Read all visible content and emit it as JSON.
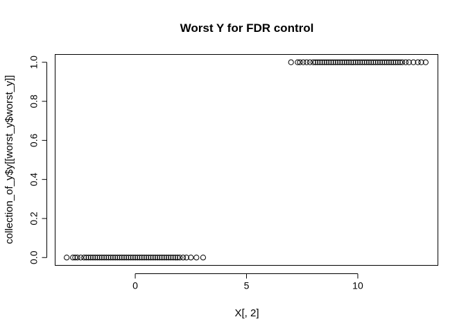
{
  "chart_data": {
    "type": "scatter",
    "title": "Worst Y for FDR control",
    "xlabel": "X[, 2]",
    "ylabel": "collection_of_y$y[[worst_y$worst_y]]",
    "xlim": [
      -3.6,
      13.6
    ],
    "ylim": [
      -0.04,
      1.04
    ],
    "x_ticks": [
      0,
      5,
      10
    ],
    "y_ticks": [
      0.0,
      0.2,
      0.4,
      0.6,
      0.8,
      1.0
    ],
    "x_tick_labels": [
      "0",
      "5",
      "10"
    ],
    "y_tick_labels": [
      "0.0",
      "0.2",
      "0.4",
      "0.6",
      "0.8",
      "1.0"
    ],
    "grid": false,
    "series": [
      {
        "values": [
          {
            "x": -3.08,
            "y": 0
          },
          {
            "x": -2.8,
            "y": 0
          },
          {
            "x": -2.7,
            "y": 0
          },
          {
            "x": -2.6,
            "y": 0
          },
          {
            "x": -2.45,
            "y": 0
          },
          {
            "x": -2.3,
            "y": 0
          },
          {
            "x": -2.2,
            "y": 0
          },
          {
            "x": -2.1,
            "y": 0
          },
          {
            "x": -2.0,
            "y": 0
          },
          {
            "x": -1.9,
            "y": 0
          },
          {
            "x": -1.8,
            "y": 0
          },
          {
            "x": -1.7,
            "y": 0
          },
          {
            "x": -1.6,
            "y": 0
          },
          {
            "x": -1.5,
            "y": 0
          },
          {
            "x": -1.4,
            "y": 0
          },
          {
            "x": -1.3,
            "y": 0
          },
          {
            "x": -1.2,
            "y": 0
          },
          {
            "x": -1.1,
            "y": 0
          },
          {
            "x": -1.0,
            "y": 0
          },
          {
            "x": -0.9,
            "y": 0
          },
          {
            "x": -0.8,
            "y": 0
          },
          {
            "x": -0.7,
            "y": 0
          },
          {
            "x": -0.6,
            "y": 0
          },
          {
            "x": -0.5,
            "y": 0
          },
          {
            "x": -0.4,
            "y": 0
          },
          {
            "x": -0.3,
            "y": 0
          },
          {
            "x": -0.2,
            "y": 0
          },
          {
            "x": -0.1,
            "y": 0
          },
          {
            "x": 0.0,
            "y": 0
          },
          {
            "x": 0.1,
            "y": 0
          },
          {
            "x": 0.2,
            "y": 0
          },
          {
            "x": 0.3,
            "y": 0
          },
          {
            "x": 0.4,
            "y": 0
          },
          {
            "x": 0.5,
            "y": 0
          },
          {
            "x": 0.6,
            "y": 0
          },
          {
            "x": 0.7,
            "y": 0
          },
          {
            "x": 0.8,
            "y": 0
          },
          {
            "x": 0.9,
            "y": 0
          },
          {
            "x": 1.0,
            "y": 0
          },
          {
            "x": 1.1,
            "y": 0
          },
          {
            "x": 1.2,
            "y": 0
          },
          {
            "x": 1.3,
            "y": 0
          },
          {
            "x": 1.4,
            "y": 0
          },
          {
            "x": 1.5,
            "y": 0
          },
          {
            "x": 1.6,
            "y": 0
          },
          {
            "x": 1.7,
            "y": 0
          },
          {
            "x": 1.8,
            "y": 0
          },
          {
            "x": 1.9,
            "y": 0
          },
          {
            "x": 2.0,
            "y": 0
          },
          {
            "x": 2.15,
            "y": 0
          },
          {
            "x": 2.3,
            "y": 0
          },
          {
            "x": 2.5,
            "y": 0
          },
          {
            "x": 2.75,
            "y": 0
          },
          {
            "x": 3.05,
            "y": 0
          },
          {
            "x": 7.0,
            "y": 1
          },
          {
            "x": 7.3,
            "y": 1
          },
          {
            "x": 7.4,
            "y": 1
          },
          {
            "x": 7.55,
            "y": 1
          },
          {
            "x": 7.7,
            "y": 1
          },
          {
            "x": 7.85,
            "y": 1
          },
          {
            "x": 8.0,
            "y": 1
          },
          {
            "x": 8.1,
            "y": 1
          },
          {
            "x": 8.2,
            "y": 1
          },
          {
            "x": 8.3,
            "y": 1
          },
          {
            "x": 8.4,
            "y": 1
          },
          {
            "x": 8.5,
            "y": 1
          },
          {
            "x": 8.6,
            "y": 1
          },
          {
            "x": 8.7,
            "y": 1
          },
          {
            "x": 8.8,
            "y": 1
          },
          {
            "x": 8.9,
            "y": 1
          },
          {
            "x": 9.0,
            "y": 1
          },
          {
            "x": 9.1,
            "y": 1
          },
          {
            "x": 9.2,
            "y": 1
          },
          {
            "x": 9.3,
            "y": 1
          },
          {
            "x": 9.4,
            "y": 1
          },
          {
            "x": 9.5,
            "y": 1
          },
          {
            "x": 9.6,
            "y": 1
          },
          {
            "x": 9.7,
            "y": 1
          },
          {
            "x": 9.8,
            "y": 1
          },
          {
            "x": 9.9,
            "y": 1
          },
          {
            "x": 10.0,
            "y": 1
          },
          {
            "x": 10.1,
            "y": 1
          },
          {
            "x": 10.2,
            "y": 1
          },
          {
            "x": 10.3,
            "y": 1
          },
          {
            "x": 10.4,
            "y": 1
          },
          {
            "x": 10.5,
            "y": 1
          },
          {
            "x": 10.6,
            "y": 1
          },
          {
            "x": 10.7,
            "y": 1
          },
          {
            "x": 10.8,
            "y": 1
          },
          {
            "x": 10.9,
            "y": 1
          },
          {
            "x": 11.0,
            "y": 1
          },
          {
            "x": 11.1,
            "y": 1
          },
          {
            "x": 11.2,
            "y": 1
          },
          {
            "x": 11.3,
            "y": 1
          },
          {
            "x": 11.4,
            "y": 1
          },
          {
            "x": 11.5,
            "y": 1
          },
          {
            "x": 11.6,
            "y": 1
          },
          {
            "x": 11.7,
            "y": 1
          },
          {
            "x": 11.8,
            "y": 1
          },
          {
            "x": 11.9,
            "y": 1
          },
          {
            "x": 12.0,
            "y": 1
          },
          {
            "x": 12.15,
            "y": 1
          },
          {
            "x": 12.3,
            "y": 1
          },
          {
            "x": 12.5,
            "y": 1
          },
          {
            "x": 12.7,
            "y": 1
          },
          {
            "x": 12.85,
            "y": 1
          },
          {
            "x": 13.05,
            "y": 1
          }
        ]
      }
    ]
  }
}
